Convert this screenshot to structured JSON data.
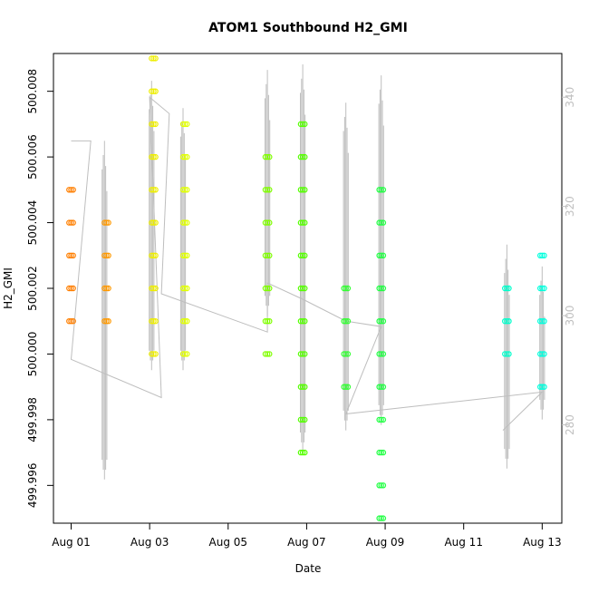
{
  "chart_data": {
    "type": "scatter",
    "title": "ATOM1 Southbound H2_GMI",
    "xlabel": "Date",
    "ylabel": "H2_GMI",
    "right_axis_label": "",
    "x_ticks": [
      "Aug 01",
      "Aug 03",
      "Aug 05",
      "Aug 07",
      "Aug 09",
      "Aug 11",
      "Aug 13"
    ],
    "x_tick_days": [
      1,
      3,
      5,
      7,
      9,
      11,
      13
    ],
    "xlim": [
      0.55,
      13.5
    ],
    "y_ticks": [
      "499.996",
      "499.998",
      "500.000",
      "500.002",
      "500.004",
      "500.006",
      "500.008"
    ],
    "y_tick_values": [
      499.996,
      499.998,
      500.0,
      500.002,
      500.004,
      500.006,
      500.008
    ],
    "ylim": [
      499.99485,
      500.00915
    ],
    "right_ticks": [
      "280",
      "300",
      "320",
      "340"
    ],
    "right_tick_values": [
      280,
      300,
      320,
      340
    ],
    "right_ylim": [
      262,
      348
    ],
    "grid": false,
    "colors": {
      "line": "#bebebe",
      "right_axis": "#bfbfbf",
      "frame": "#000000"
    },
    "series": [
      {
        "x": 1.0,
        "color": "#ff7f00",
        "values": [
          500.001,
          500.002,
          500.003,
          500.004,
          500.005
        ]
      },
      {
        "x": 1.9,
        "color": "#ff9900",
        "values": [
          500.001,
          500.002,
          500.003,
          500.004
        ]
      },
      {
        "x": 3.1,
        "color": "#eeee00",
        "values": [
          500.0,
          500.001,
          500.002,
          500.003,
          500.004,
          500.005,
          500.006,
          500.007,
          500.008,
          500.009
        ]
      },
      {
        "x": 3.9,
        "color": "#e0ff00",
        "values": [
          500.0,
          500.001,
          500.002,
          500.003,
          500.004,
          500.005,
          500.006,
          500.007
        ]
      },
      {
        "x": 6.0,
        "color": "#80ff00",
        "values": [
          500.0,
          500.001,
          500.002,
          500.003,
          500.004,
          500.005,
          500.006
        ]
      },
      {
        "x": 6.9,
        "color": "#55ff00",
        "values": [
          499.997,
          499.998,
          499.999,
          500.0,
          500.001,
          500.002,
          500.003,
          500.004,
          500.005,
          500.006,
          500.007
        ]
      },
      {
        "x": 8.0,
        "color": "#33ff33",
        "values": [
          499.999,
          500.0,
          500.001,
          500.002
        ]
      },
      {
        "x": 8.9,
        "color": "#22ff44",
        "values": [
          499.995,
          499.996,
          499.997,
          499.998,
          499.999,
          500.0,
          500.001,
          500.002,
          500.003,
          500.004,
          500.005
        ]
      },
      {
        "x": 12.1,
        "color": "#00ffcc",
        "values": [
          500.0,
          500.001,
          500.002
        ]
      },
      {
        "x": 13.0,
        "color": "#00ffdd",
        "values": [
          499.999,
          500.0,
          500.001,
          500.002,
          500.003
        ]
      }
    ],
    "right_line": [
      [
        1.0,
        332
      ],
      [
        1.5,
        332
      ],
      [
        1.0,
        292
      ],
      [
        3.3,
        285
      ],
      [
        3.0,
        340
      ],
      [
        3.5,
        337
      ],
      [
        3.3,
        304
      ],
      [
        6.0,
        297
      ],
      [
        6.0,
        306
      ],
      [
        6.9,
        303
      ],
      [
        8.0,
        299
      ],
      [
        8.9,
        298
      ],
      [
        8.0,
        282
      ],
      [
        13.0,
        286
      ],
      [
        12.0,
        279
      ]
    ],
    "right_spikes": [
      {
        "x": 1.85,
        "lo": 270,
        "hi": 334
      },
      {
        "x": 3.05,
        "lo": 290,
        "hi": 345
      },
      {
        "x": 3.85,
        "lo": 290,
        "hi": 340
      },
      {
        "x": 6.0,
        "lo": 300,
        "hi": 347
      },
      {
        "x": 6.9,
        "lo": 275,
        "hi": 348
      },
      {
        "x": 8.0,
        "lo": 279,
        "hi": 341
      },
      {
        "x": 8.9,
        "lo": 280,
        "hi": 346
      },
      {
        "x": 12.1,
        "lo": 272,
        "hi": 315
      },
      {
        "x": 13.0,
        "lo": 281,
        "hi": 311
      }
    ]
  }
}
